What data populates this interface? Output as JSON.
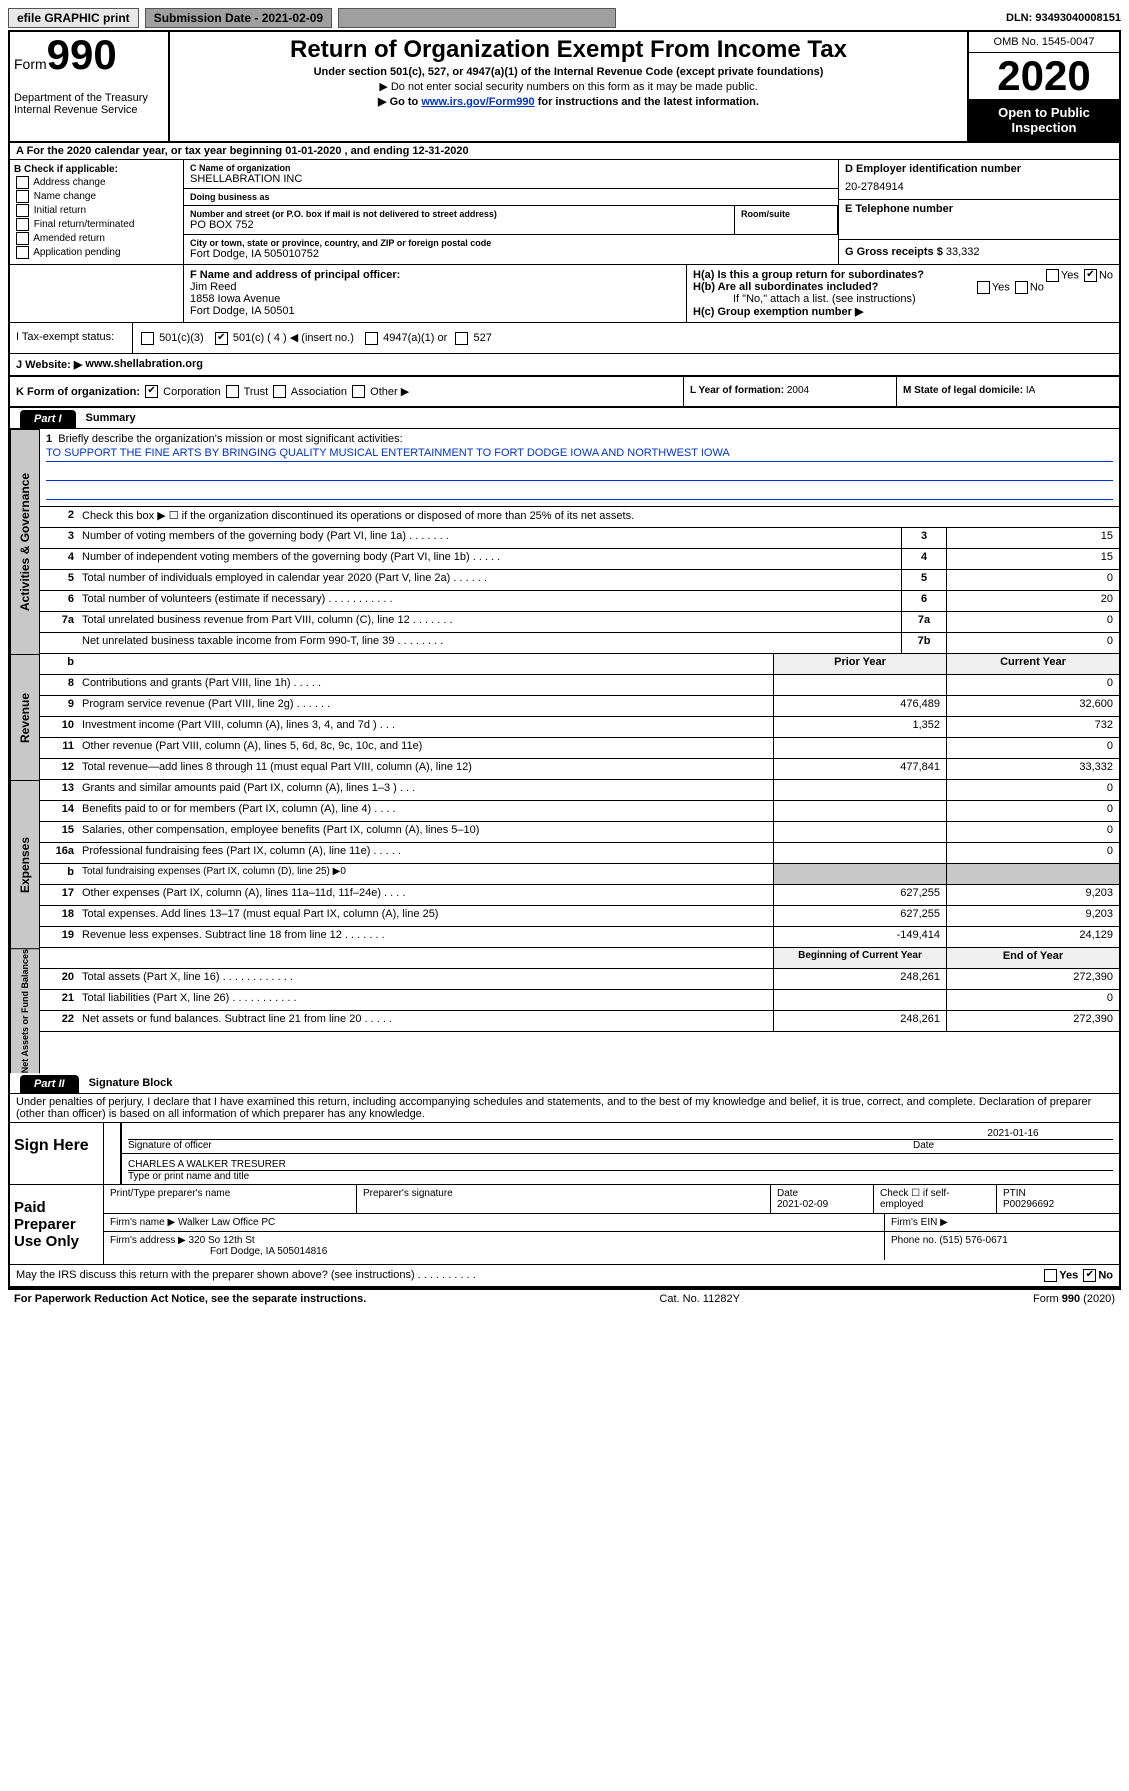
{
  "top_bar": {
    "efile": "efile GRAPHIC print",
    "submission": "Submission Date - 2021-02-09",
    "dln": "DLN: 93493040008151"
  },
  "header": {
    "form_prefix": "Form",
    "form_num": "990",
    "dept": "Department of the Treasury\nInternal Revenue Service",
    "title": "Return of Organization Exempt From Income Tax",
    "subtitle1": "Under section 501(c), 527, or 4947(a)(1) of the Internal Revenue Code (except private foundations)",
    "subtitle2": "▶ Do not enter social security numbers on this form as it may be made public.",
    "subtitle3_pre": "▶ Go to ",
    "subtitle3_link": "www.irs.gov/Form990",
    "subtitle3_post": " for instructions and the latest information.",
    "omb": "OMB No. 1545-0047",
    "year": "2020",
    "inspect": "Open to Public Inspection"
  },
  "period": {
    "text_pre": "A  For the 2020 calendar year, or tax year beginning ",
    "begin": "01-01-2020",
    "mid": " , and ending ",
    "end": "12-31-2020"
  },
  "section_b": {
    "hdr": "B Check if applicable:",
    "chk1": "Address change",
    "chk2": "Name change",
    "chk3": "Initial return",
    "chk4": "Final return/terminated",
    "chk5": "Amended return",
    "chk6": "Application pending"
  },
  "section_c": {
    "name_label": "C Name of organization",
    "name": "SHELLABRATION INC",
    "dba_label": "Doing business as",
    "addr_label": "Number and street (or P.O. box if mail is not delivered to street address)",
    "addr": "PO BOX 752",
    "room_label": "Room/suite",
    "city_label": "City or town, state or province, country, and ZIP or foreign postal code",
    "city": "Fort Dodge, IA  505010752"
  },
  "section_d": {
    "label": "D Employer identification number",
    "ein": "20-2784914",
    "tel_label": "E Telephone number",
    "gross_label": "G Gross receipts $",
    "gross": "33,332"
  },
  "section_f": {
    "label": "F Name and address of principal officer:",
    "name": "Jim Reed",
    "addr1": "1858 Iowa Avenue",
    "addr2": "Fort Dodge, IA  50501"
  },
  "section_h": {
    "ha": "H(a)  Is this a group return for subordinates?",
    "hb": "H(b)  Are all subordinates included?",
    "note": "If \"No,\" attach a list. (see instructions)",
    "hc": "H(c)  Group exemption number ▶",
    "yes": "Yes",
    "no": "No"
  },
  "section_i": {
    "label": "I   Tax-exempt status:",
    "c3": "501(c)(3)",
    "c4": "501(c) ( 4 ) ◀ (insert no.)",
    "a1": "4947(a)(1) or",
    "s527": "527"
  },
  "section_j": {
    "label": "J   Website: ▶",
    "url": "www.shellabration.org"
  },
  "section_k": {
    "label": "K Form of organization:",
    "corp": "Corporation",
    "trust": "Trust",
    "assoc": "Association",
    "other": "Other ▶"
  },
  "section_l": {
    "label": "L Year of formation:",
    "val": "2004"
  },
  "section_m": {
    "label": "M State of legal domicile:",
    "val": "IA"
  },
  "part1": {
    "tab": "Part I",
    "title": "Summary",
    "vtab1": "Activities & Governance",
    "vtab2": "Revenue",
    "vtab3": "Expenses",
    "vtab4": "Net Assets or Fund Balances",
    "line1_label": "Briefly describe the organization's mission or most significant activities:",
    "line1_text": "TO SUPPORT THE FINE ARTS BY BRINGING QUALITY MUSICAL ENTERTAINMENT TO FORT DODGE IOWA AND NORTHWEST IOWA",
    "line2": "Check this box ▶ ☐  if the organization discontinued its operations or disposed of more than 25% of its net assets.",
    "rows_ag": [
      {
        "n": "3",
        "d": "Number of voting members of the governing body (Part VI, line 1a)   .    .    .    .    .    .    .",
        "b": "3",
        "v": "15"
      },
      {
        "n": "4",
        "d": "Number of independent voting members of the governing body (Part VI, line 1b)  .    .    .    .    .",
        "b": "4",
        "v": "15"
      },
      {
        "n": "5",
        "d": "Total number of individuals employed in calendar year 2020 (Part V, line 2a)  .    .    .    .    .    .",
        "b": "5",
        "v": "0"
      },
      {
        "n": "6",
        "d": "Total number of volunteers (estimate if necessary)   .    .    .    .    .    .    .    .    .    .    .",
        "b": "6",
        "v": "20"
      },
      {
        "n": "7a",
        "d": "Total unrelated business revenue from Part VIII, column (C), line 12   .    .    .    .    .    .    .",
        "b": "7a",
        "v": "0"
      },
      {
        "n": "",
        "d": "Net unrelated business taxable income from Form 990-T, line 39   .    .    .    .    .    .    .    .",
        "b": "7b",
        "v": "0"
      }
    ],
    "hdr_prior": "Prior Year",
    "hdr_current": "Current Year",
    "rows_rev": [
      {
        "n": "8",
        "d": "Contributions and grants (Part VIII, line 1h)   .    .    .    .    .",
        "p": "",
        "c": "0"
      },
      {
        "n": "9",
        "d": "Program service revenue (Part VIII, line 2g)   .    .    .    .    .    .",
        "p": "476,489",
        "c": "32,600"
      },
      {
        "n": "10",
        "d": "Investment income (Part VIII, column (A), lines 3, 4, and 7d )   .    .    .",
        "p": "1,352",
        "c": "732"
      },
      {
        "n": "11",
        "d": "Other revenue (Part VIII, column (A), lines 5, 6d, 8c, 9c, 10c, and 11e)",
        "p": "",
        "c": "0"
      },
      {
        "n": "12",
        "d": "Total revenue—add lines 8 through 11 (must equal Part VIII, column (A), line 12)",
        "p": "477,841",
        "c": "33,332"
      }
    ],
    "rows_exp": [
      {
        "n": "13",
        "d": "Grants and similar amounts paid (Part IX, column (A), lines 1–3 )  .    .    .",
        "p": "",
        "c": "0"
      },
      {
        "n": "14",
        "d": "Benefits paid to or for members (Part IX, column (A), line 4)  .    .    .    .",
        "p": "",
        "c": "0"
      },
      {
        "n": "15",
        "d": "Salaries, other compensation, employee benefits (Part IX, column (A), lines 5–10)",
        "p": "",
        "c": "0"
      },
      {
        "n": "16a",
        "d": "Professional fundraising fees (Part IX, column (A), line 11e)  .    .    .    .    .",
        "p": "",
        "c": "0"
      }
    ],
    "line16b_n": "b",
    "line16b": "Total fundraising expenses (Part IX, column (D), line 25) ▶0",
    "rows_exp2": [
      {
        "n": "17",
        "d": "Other expenses (Part IX, column (A), lines 11a–11d, 11f–24e)  .    .    .    .",
        "p": "627,255",
        "c": "9,203"
      },
      {
        "n": "18",
        "d": "Total expenses. Add lines 13–17 (must equal Part IX, column (A), line 25)",
        "p": "627,255",
        "c": "9,203"
      },
      {
        "n": "19",
        "d": "Revenue less expenses. Subtract line 18 from line 12  .    .    .    .    .    .    .",
        "p": "-149,414",
        "c": "24,129"
      }
    ],
    "hdr_begin": "Beginning of Current Year",
    "hdr_end": "End of Year",
    "rows_net": [
      {
        "n": "20",
        "d": "Total assets (Part X, line 16)  .    .    .    .    .    .    .    .    .    .    .    .",
        "p": "248,261",
        "c": "272,390"
      },
      {
        "n": "21",
        "d": "Total liabilities (Part X, line 26)  .    .    .    .    .    .    .    .    .    .    .",
        "p": "",
        "c": "0"
      },
      {
        "n": "22",
        "d": "Net assets or fund balances. Subtract line 21 from line 20  .    .    .    .    .",
        "p": "248,261",
        "c": "272,390"
      }
    ]
  },
  "part2": {
    "tab": "Part II",
    "title": "Signature Block",
    "perjury": "Under penalties of perjury, I declare that I have examined this return, including accompanying schedules and statements, and to the best of my knowledge and belief, it is true, correct, and complete. Declaration of preparer (other than officer) is based on all information of which preparer has any knowledge.",
    "sign_here": "Sign Here",
    "sig_officer": "Signature of officer",
    "sig_date": "2021-01-16",
    "sig_date_label": "Date",
    "officer_name": "CHARLES A WALKER TRESURER",
    "name_title_label": "Type or print name and title",
    "paid_prep": "Paid Preparer Use Only",
    "prep_name_label": "Print/Type preparer's name",
    "prep_sig_label": "Preparer's signature",
    "prep_date_label": "Date",
    "prep_date": "2021-02-09",
    "check_se": "Check ☐ if self-employed",
    "ptin_label": "PTIN",
    "ptin": "P00296692",
    "firm_name_label": "Firm's name    ▶",
    "firm_name": "Walker Law Office PC",
    "firm_ein_label": "Firm's EIN ▶",
    "firm_addr_label": "Firm's address ▶",
    "firm_addr1": "320 So 12th St",
    "firm_addr2": "Fort Dodge, IA  505014816",
    "phone_label": "Phone no.",
    "phone": "(515) 576-0671",
    "discuss": "May the IRS discuss this return with the preparer shown above? (see instructions)   .    .    .    .    .    .    .    .    .    .",
    "yes": "Yes",
    "no": "No"
  },
  "footer": {
    "pra": "For Paperwork Reduction Act Notice, see the separate instructions.",
    "cat": "Cat. No. 11282Y",
    "form": "Form 990 (2020)"
  },
  "colors": {
    "link": "#0033cc",
    "shade": "#c8c8c8",
    "topbtn": "#9f9f9f"
  }
}
